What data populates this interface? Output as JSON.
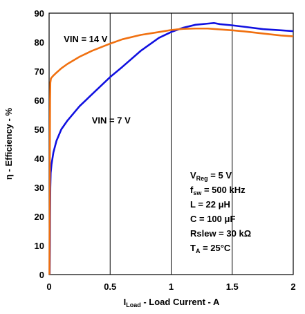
{
  "chart_data": {
    "type": "line",
    "xlabel_prefix": "I",
    "xlabel_sub": "Load",
    "xlabel_rest": " - Load Current - A",
    "ylabel": "η - Efficiency - %",
    "xlim": [
      0,
      2
    ],
    "ylim": [
      0,
      90
    ],
    "x_ticks": [
      "0",
      "0.5",
      "1",
      "1.5",
      "2"
    ],
    "y_ticks": [
      "0",
      "10",
      "20",
      "30",
      "40",
      "50",
      "60",
      "70",
      "80",
      "90"
    ],
    "grid": "vertical",
    "series": [
      {
        "name": "VIN = 7 V",
        "color": "#1010e0",
        "points": [
          [
            0.005,
            0
          ],
          [
            0.007,
            10
          ],
          [
            0.008,
            20
          ],
          [
            0.01,
            30
          ],
          [
            0.013,
            35
          ],
          [
            0.02,
            38
          ],
          [
            0.035,
            42
          ],
          [
            0.06,
            46
          ],
          [
            0.1,
            50
          ],
          [
            0.15,
            53
          ],
          [
            0.25,
            58
          ],
          [
            0.35,
            62
          ],
          [
            0.5,
            68
          ],
          [
            0.6,
            71.5
          ],
          [
            0.75,
            77
          ],
          [
            0.9,
            81.5
          ],
          [
            1.0,
            83.5
          ],
          [
            1.1,
            85
          ],
          [
            1.2,
            86
          ],
          [
            1.3,
            86.4
          ],
          [
            1.35,
            86.6
          ],
          [
            1.4,
            86.2
          ],
          [
            1.5,
            85.8
          ],
          [
            1.6,
            85.3
          ],
          [
            1.75,
            84.5
          ],
          [
            1.9,
            84.1
          ],
          [
            2.0,
            83.8
          ]
        ]
      },
      {
        "name": "VIN = 14 V",
        "color": "#f07010",
        "points": [
          [
            0.003,
            0
          ],
          [
            0.004,
            10
          ],
          [
            0.005,
            20
          ],
          [
            0.006,
            30
          ],
          [
            0.006,
            40
          ],
          [
            0.007,
            50
          ],
          [
            0.008,
            60
          ],
          [
            0.01,
            66
          ],
          [
            0.015,
            67.5
          ],
          [
            0.03,
            68.3
          ],
          [
            0.06,
            69.5
          ],
          [
            0.1,
            71
          ],
          [
            0.15,
            72.5
          ],
          [
            0.25,
            75
          ],
          [
            0.35,
            77
          ],
          [
            0.5,
            79.5
          ],
          [
            0.6,
            81
          ],
          [
            0.75,
            82.5
          ],
          [
            0.9,
            83.5
          ],
          [
            1.0,
            84.2
          ],
          [
            1.1,
            84.6
          ],
          [
            1.2,
            84.7
          ],
          [
            1.3,
            84.7
          ],
          [
            1.4,
            84.4
          ],
          [
            1.5,
            84.1
          ],
          [
            1.6,
            83.7
          ],
          [
            1.75,
            83
          ],
          [
            1.9,
            82.3
          ],
          [
            2.0,
            82
          ]
        ]
      }
    ],
    "series_labels": [
      {
        "text": "VIN = 14 V",
        "x": 0.12,
        "y": 80
      },
      {
        "text": "VIN = 7 V",
        "x": 0.35,
        "y": 52
      }
    ],
    "annotations": [
      {
        "main": "V",
        "sub": "Reg",
        "rest": " = 5 V"
      },
      {
        "main": "f",
        "sub": "sw",
        "rest": " = 500 kHz"
      },
      {
        "main": "L = 22 μH",
        "sub": "",
        "rest": ""
      },
      {
        "main": "C = 100 μF",
        "sub": "",
        "rest": ""
      },
      {
        "main": "Rslew  = 30 kΩ",
        "sub": "",
        "rest": ""
      },
      {
        "main": "T",
        "sub": "A",
        "rest": " = 25°C"
      }
    ]
  }
}
